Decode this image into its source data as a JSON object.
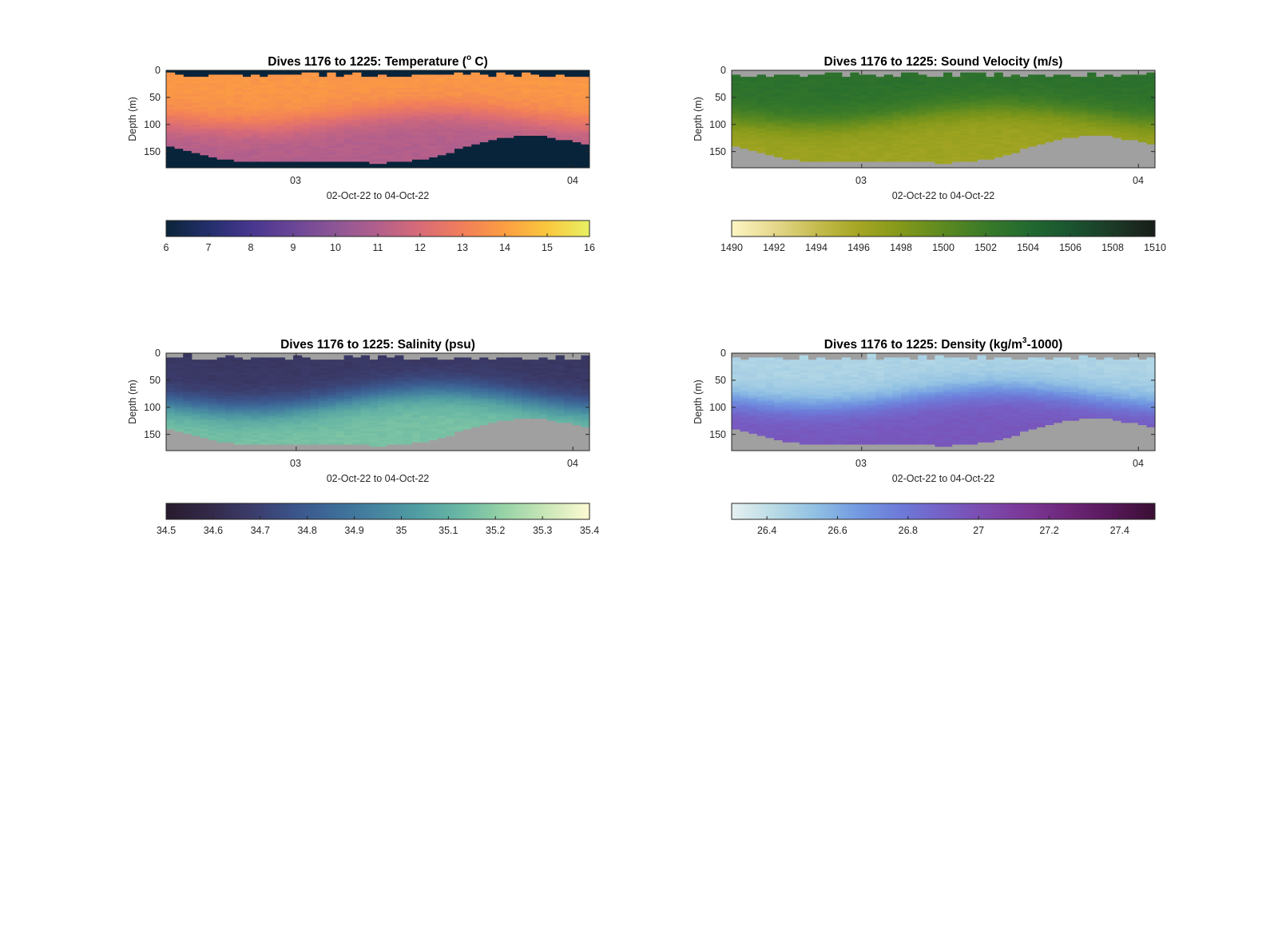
{
  "figure": {
    "background": "#ffffff",
    "nodata_color": "#a0a0a0",
    "axis_color": "#262626"
  },
  "chart_data": [
    {
      "type": "heatmap",
      "panel": "top-left",
      "title": "Dives 1176 to 1225: Temperature (° C)",
      "title_parts": {
        "main": "Dives 1176 to 1225: Temperature (",
        "sup": "o",
        "after": " C)"
      },
      "xlabel": "02-Oct-22 to 04-Oct-22",
      "ylabel": "Depth (m)",
      "x_ticks": [
        "03",
        "04"
      ],
      "x_tick_days": [
        3,
        4
      ],
      "xlim_days": [
        2.53,
        4.06
      ],
      "y_ticks": [
        0,
        50,
        100,
        150
      ],
      "ylim": [
        0,
        180
      ],
      "y_reversed": true,
      "n_profiles": 50,
      "masked_color": "#07243a",
      "colorbar": {
        "range": [
          6,
          16
        ],
        "ticks": [
          "6",
          "7",
          "8",
          "9",
          "10",
          "11",
          "12",
          "13",
          "14",
          "15",
          "16"
        ],
        "colormap": [
          "#0b2539",
          "#232f6c",
          "#47368f",
          "#6a4596",
          "#8d5696",
          "#b25f8c",
          "#d86b77",
          "#f17e5a",
          "#fc9e42",
          "#fac73e",
          "#e8f063"
        ]
      },
      "field": {
        "surface_value": 13.8,
        "deep_value": 11.0,
        "cline_min_m": 75,
        "cline_max_m": 105
      }
    },
    {
      "type": "heatmap",
      "panel": "top-right",
      "title": "Dives 1176 to 1225: Sound Velocity (m/s)",
      "xlabel": "02-Oct-22 to 04-Oct-22",
      "ylabel": "Depth (m)",
      "x_ticks": [
        "03",
        "04"
      ],
      "x_tick_days": [
        3,
        4
      ],
      "xlim_days": [
        2.53,
        4.06
      ],
      "y_ticks": [
        0,
        50,
        100,
        150
      ],
      "ylim": [
        0,
        180
      ],
      "y_reversed": true,
      "n_profiles": 50,
      "masked_color": "#a0a0a0",
      "colorbar": {
        "range": [
          1490,
          1510
        ],
        "ticks": [
          "1490",
          "1492",
          "1494",
          "1496",
          "1498",
          "1500",
          "1502",
          "1504",
          "1506",
          "1508",
          "1510"
        ],
        "colormap": [
          "#fdf6c4",
          "#e6d88d",
          "#c6bc4f",
          "#a5a623",
          "#83981a",
          "#5d8a20",
          "#3a7a28",
          "#226a30",
          "#1a5430",
          "#1c3a27",
          "#181d19"
        ]
      },
      "field": {
        "surface_value": 1503.2,
        "deep_value": 1496.4,
        "cline_min_m": 70,
        "cline_max_m": 100
      }
    },
    {
      "type": "heatmap",
      "panel": "bottom-left",
      "title": "Dives 1176 to 1225: Salinity (psu)",
      "xlabel": "02-Oct-22 to 04-Oct-22",
      "ylabel": "Depth (m)",
      "x_ticks": [
        "03",
        "04"
      ],
      "x_tick_days": [
        3,
        4
      ],
      "xlim_days": [
        2.53,
        4.06
      ],
      "y_ticks": [
        0,
        50,
        100,
        150
      ],
      "ylim": [
        0,
        180
      ],
      "y_reversed": true,
      "n_profiles": 50,
      "masked_color": "#a0a0a0",
      "colorbar": {
        "range": [
          34.5,
          35.4
        ],
        "ticks": [
          "34.5",
          "34.6",
          "34.7",
          "34.8",
          "34.9",
          "35",
          "35.1",
          "35.2",
          "35.3",
          "35.4"
        ],
        "colormap": [
          "#281b2f",
          "#332948",
          "#3b3b6a",
          "#3b5389",
          "#3d6c99",
          "#4685a0",
          "#529fa3",
          "#6bb9a4",
          "#98d3a6",
          "#cbe7b8",
          "#fdfbd2"
        ]
      },
      "field": {
        "surface_value": 34.66,
        "deep_value": 35.16,
        "cline_min_m": 70,
        "cline_max_m": 105
      }
    },
    {
      "type": "heatmap",
      "panel": "bottom-right",
      "title": "Dives 1176 to 1225: Density (kg/m³-1000)",
      "title_parts": {
        "main": "Dives 1176 to 1225: Density (kg/m",
        "sup": "3",
        "after": "-1000)"
      },
      "xlabel": "02-Oct-22 to 04-Oct-22",
      "ylabel": "Depth (m)",
      "x_ticks": [
        "03",
        "04"
      ],
      "x_tick_days": [
        3,
        4
      ],
      "xlim_days": [
        2.53,
        4.06
      ],
      "y_ticks": [
        0,
        50,
        100,
        150
      ],
      "ylim": [
        0,
        180
      ],
      "y_reversed": true,
      "n_profiles": 50,
      "masked_color": "#a0a0a0",
      "colorbar": {
        "range": [
          26.3,
          27.5
        ],
        "ticks": [
          "26.4",
          "26.6",
          "26.8",
          "27",
          "27.2",
          "27.4"
        ],
        "tick_values": [
          26.4,
          26.6,
          26.8,
          27.0,
          27.2,
          27.4
        ],
        "colormap": [
          "#e6f1f1",
          "#b9dbe5",
          "#8fbfe3",
          "#7299e1",
          "#6d7ad8",
          "#7560c6",
          "#7c4aae",
          "#7a3795",
          "#6c2577",
          "#561758",
          "#3a0f33"
        ]
      },
      "field": {
        "surface_value": 26.45,
        "deep_value": 26.95,
        "cline_min_m": 70,
        "cline_max_m": 100
      }
    }
  ]
}
